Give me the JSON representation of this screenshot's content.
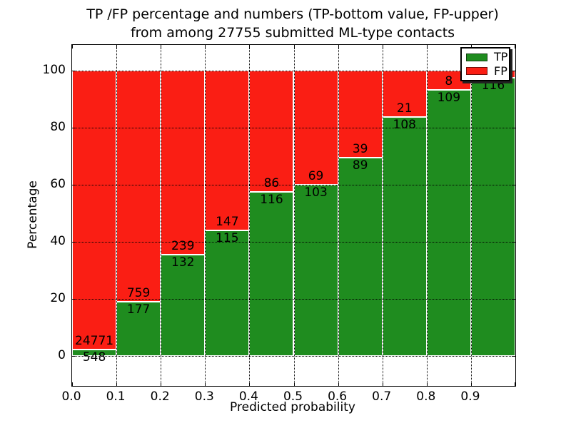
{
  "title": {
    "line1": "TP /FP percentage and numbers (TP-bottom value, FP-upper)",
    "line2": "from among 27755 submitted ML-type contacts"
  },
  "axis": {
    "ylabel": "Percentage",
    "xlabel": "Predicted probability",
    "yticks": [
      "0",
      "20",
      "40",
      "60",
      "80",
      "100"
    ],
    "ytick_values": [
      0,
      20,
      40,
      60,
      80,
      100
    ],
    "xticks": [
      "0.0",
      "0.1",
      "0.2",
      "0.3",
      "0.4",
      "0.5",
      "0.6",
      "0.7",
      "0.8",
      "0.9"
    ],
    "xtick_values": [
      0.0,
      0.1,
      0.2,
      0.3,
      0.4,
      0.5,
      0.6,
      0.7,
      0.8,
      0.9
    ]
  },
  "legend": {
    "position": "upper right",
    "items": [
      {
        "label": "TP",
        "color": "#1f8c1f"
      },
      {
        "label": "FP",
        "color": "#fa1e14"
      }
    ]
  },
  "colors": {
    "tp": "#1f8c1f",
    "fp": "#fa1e14",
    "bar_edge": "#ffffff",
    "grid": "#000000",
    "background": "#ffffff",
    "text": "#000000"
  },
  "chart_data": {
    "type": "bar",
    "stacked": true,
    "normalized_to_percent": true,
    "title": "TP /FP percentage and numbers (TP-bottom value, FP-upper) from among 27755 submitted ML-type contacts",
    "xlabel": "Predicted probability",
    "ylabel": "Percentage",
    "xlim": [
      0.0,
      1.0
    ],
    "ylim": [
      -10.5,
      109.5
    ],
    "grid": true,
    "legend_position": "upper right",
    "total_contacts": 27755,
    "categories": [
      "0.0-0.1",
      "0.1-0.2",
      "0.2-0.3",
      "0.3-0.4",
      "0.4-0.5",
      "0.5-0.6",
      "0.6-0.7",
      "0.7-0.8",
      "0.8-0.9",
      "0.9-1.0"
    ],
    "series": [
      {
        "name": "TP",
        "counts": [
          548,
          177,
          132,
          115,
          116,
          103,
          89,
          108,
          109,
          116
        ],
        "pct": [
          2.16,
          18.91,
          35.58,
          43.89,
          57.43,
          59.88,
          69.53,
          83.72,
          93.16,
          97.48
        ]
      },
      {
        "name": "FP",
        "counts": [
          24771,
          759,
          239,
          147,
          86,
          69,
          39,
          21,
          8,
          null
        ],
        "pct": [
          97.84,
          81.09,
          64.42,
          56.11,
          42.57,
          40.12,
          30.47,
          16.28,
          6.84,
          2.52
        ]
      }
    ],
    "bins": [
      {
        "range": [
          0.0,
          0.1
        ],
        "tp_count": 548,
        "fp_count": 24771,
        "tp_pct": 2.16,
        "fp_label_visible": true
      },
      {
        "range": [
          0.1,
          0.2
        ],
        "tp_count": 177,
        "fp_count": 759,
        "tp_pct": 18.91,
        "fp_label_visible": true
      },
      {
        "range": [
          0.2,
          0.3
        ],
        "tp_count": 132,
        "fp_count": 239,
        "tp_pct": 35.58,
        "fp_label_visible": true
      },
      {
        "range": [
          0.3,
          0.4
        ],
        "tp_count": 115,
        "fp_count": 147,
        "tp_pct": 43.89,
        "fp_label_visible": true
      },
      {
        "range": [
          0.4,
          0.5
        ],
        "tp_count": 116,
        "fp_count": 86,
        "tp_pct": 57.43,
        "fp_label_visible": true
      },
      {
        "range": [
          0.5,
          0.6
        ],
        "tp_count": 103,
        "fp_count": 69,
        "tp_pct": 59.88,
        "fp_label_visible": true
      },
      {
        "range": [
          0.6,
          0.7
        ],
        "tp_count": 89,
        "fp_count": 39,
        "tp_pct": 69.53,
        "fp_label_visible": true
      },
      {
        "range": [
          0.7,
          0.8
        ],
        "tp_count": 108,
        "fp_count": 21,
        "tp_pct": 83.72,
        "fp_label_visible": true
      },
      {
        "range": [
          0.8,
          0.9
        ],
        "tp_count": 109,
        "fp_count": 8,
        "tp_pct": 93.16,
        "fp_label_visible": true
      },
      {
        "range": [
          0.9,
          1.0
        ],
        "tp_count": 116,
        "fp_count": null,
        "tp_pct": 97.48,
        "fp_label_visible": false
      }
    ]
  }
}
